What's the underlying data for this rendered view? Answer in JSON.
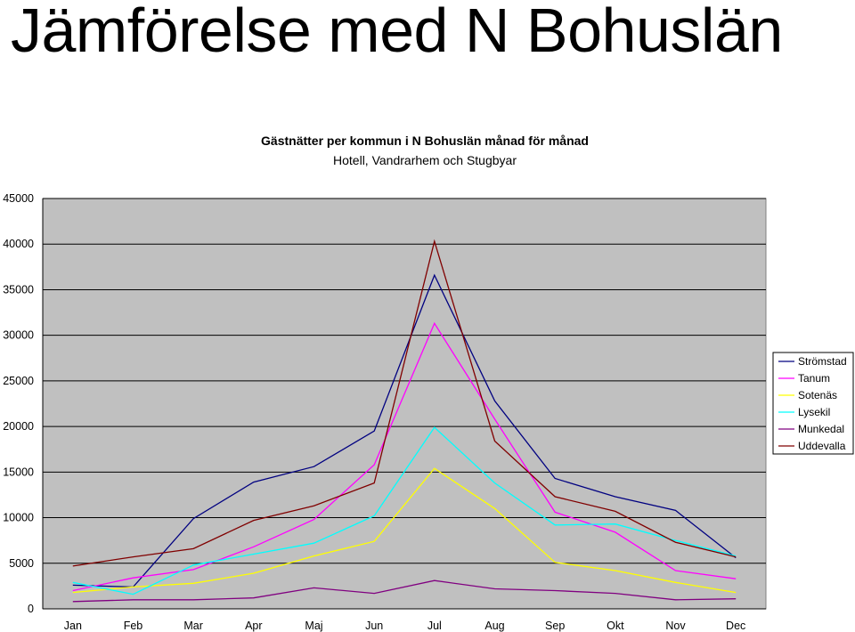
{
  "page": {
    "title": "Jämförelse med N Bohuslän"
  },
  "chart_data": {
    "type": "line",
    "title": "Gästnätter per kommun i N Bohuslän månad för månad",
    "subtitle": "Hotell, Vandrarhem och Stugbyar",
    "xlabel": "",
    "ylabel": "",
    "categories": [
      "Jan",
      "Feb",
      "Mar",
      "Apr",
      "Maj",
      "Jun",
      "Jul",
      "Aug",
      "Sep",
      "Okt",
      "Nov",
      "Dec"
    ],
    "ylim": [
      0,
      45000
    ],
    "yticks": [
      "0",
      "5000",
      "10000",
      "15000",
      "20000",
      "25000",
      "30000",
      "35000",
      "40000",
      "45000"
    ],
    "grid": true,
    "plot_background": "#c0c0c0",
    "legend_position": "right",
    "series": [
      {
        "name": "Strömstad",
        "color": "#000080",
        "values": [
          2600,
          2400,
          9900,
          13900,
          15600,
          19500,
          36600,
          22800,
          14300,
          12300,
          10800,
          5600
        ]
      },
      {
        "name": "Tanum",
        "color": "#ff00ff",
        "values": [
          2000,
          3400,
          4300,
          6800,
          9800,
          15800,
          31300,
          20800,
          10600,
          8400,
          4200,
          3300
        ]
      },
      {
        "name": "Sotenäs",
        "color": "#ffff00",
        "values": [
          1800,
          2400,
          2800,
          3900,
          5800,
          7400,
          15400,
          11000,
          5100,
          4200,
          2900,
          1800
        ]
      },
      {
        "name": "Lysekil",
        "color": "#00ffff",
        "values": [
          2900,
          1600,
          4800,
          6000,
          7200,
          10200,
          19900,
          13800,
          9200,
          9300,
          7500,
          5800
        ]
      },
      {
        "name": "Munkedal",
        "color": "#800080",
        "values": [
          800,
          1000,
          1000,
          1200,
          2300,
          1700,
          3100,
          2200,
          2000,
          1700,
          1000,
          1100
        ]
      },
      {
        "name": "Uddevalla",
        "color": "#800000",
        "values": [
          4700,
          5700,
          6600,
          9700,
          11300,
          13800,
          40300,
          18400,
          12300,
          10700,
          7300,
          5700
        ]
      }
    ]
  }
}
